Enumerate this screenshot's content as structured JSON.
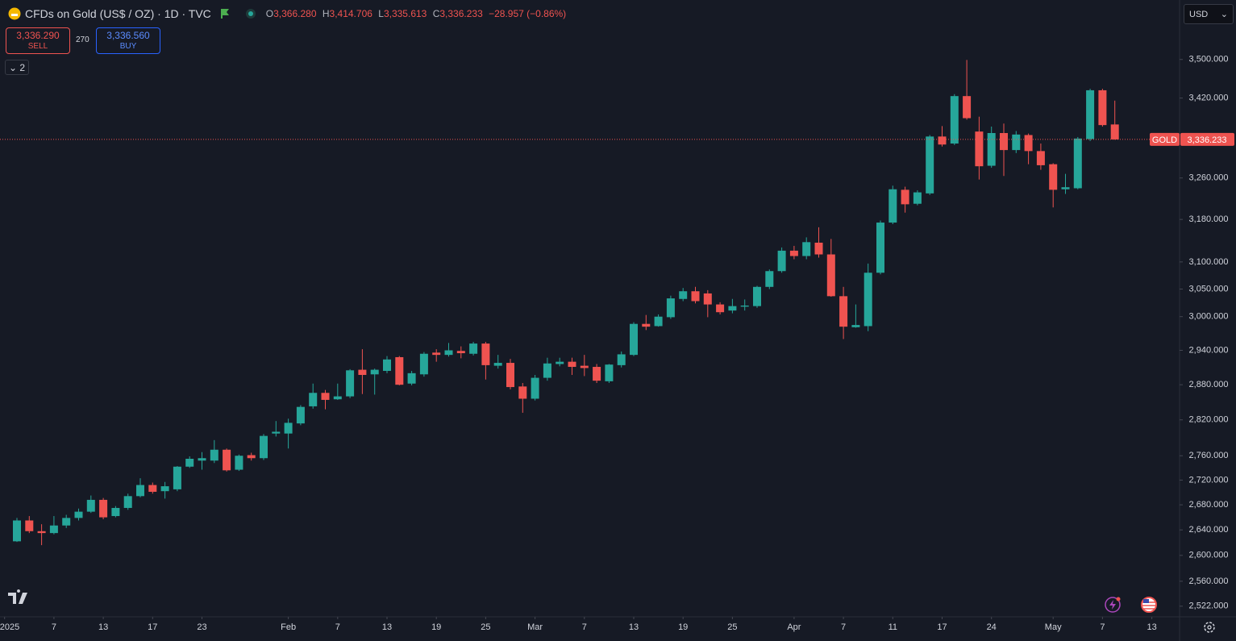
{
  "header": {
    "symbol": "CFDs on Gold (US$ / OZ) · 1D · TVC",
    "ohlc": [
      {
        "key": "O",
        "value": "3,366.280"
      },
      {
        "key": "H",
        "value": "3,414.706"
      },
      {
        "key": "L",
        "value": "3,335.613"
      },
      {
        "key": "C",
        "value": "3,336.233"
      }
    ],
    "change": "−28.957 (−0.86%)"
  },
  "trade": {
    "sell_price": "3,336.290",
    "sell": "SELL",
    "spread": "270",
    "buy_price": "3,336.560",
    "buy": "BUY"
  },
  "indicators_count": "2",
  "currency": "USD",
  "chart_data": {
    "type": "candlestick",
    "categories": [
      "2025-01-02",
      "2025-01-03",
      "2025-01-06",
      "2025-01-07",
      "2025-01-08",
      "2025-01-09",
      "2025-01-10",
      "2025-01-13",
      "2025-01-14",
      "2025-01-15",
      "2025-01-16",
      "2025-01-17",
      "2025-01-20",
      "2025-01-21",
      "2025-01-22",
      "2025-01-23",
      "2025-01-24",
      "2025-01-27",
      "2025-01-28",
      "2025-01-29",
      "2025-01-30",
      "2025-01-31",
      "2025-02-03",
      "2025-02-04",
      "2025-02-05",
      "2025-02-06",
      "2025-02-07",
      "2025-02-10",
      "2025-02-11",
      "2025-02-12",
      "2025-02-13",
      "2025-02-14",
      "2025-02-17",
      "2025-02-18",
      "2025-02-19",
      "2025-02-20",
      "2025-02-21",
      "2025-02-24",
      "2025-02-25",
      "2025-02-26",
      "2025-02-27",
      "2025-02-28",
      "2025-03-03",
      "2025-03-04",
      "2025-03-05",
      "2025-03-06",
      "2025-03-07",
      "2025-03-10",
      "2025-03-11",
      "2025-03-12",
      "2025-03-13",
      "2025-03-14",
      "2025-03-17",
      "2025-03-18",
      "2025-03-19",
      "2025-03-20",
      "2025-03-21",
      "2025-03-24",
      "2025-03-25",
      "2025-03-26",
      "2025-03-27",
      "2025-03-28",
      "2025-03-31",
      "2025-04-01",
      "2025-04-02",
      "2025-04-03",
      "2025-04-04",
      "2025-04-07",
      "2025-04-08",
      "2025-04-09",
      "2025-04-10",
      "2025-04-11",
      "2025-04-14",
      "2025-04-15",
      "2025-04-16",
      "2025-04-17",
      "2025-04-21",
      "2025-04-22",
      "2025-04-23",
      "2025-04-24",
      "2025-04-25",
      "2025-04-28",
      "2025-04-29",
      "2025-04-30",
      "2025-05-01",
      "2025-05-02",
      "2025-05-05",
      "2025-05-06",
      "2025-05-07",
      "2025-05-08"
    ],
    "open": [
      2622,
      2655,
      2638,
      2635,
      2647,
      2659,
      2669,
      2688,
      2662,
      2675,
      2694,
      2712,
      2702,
      2705,
      2742,
      2752,
      2752,
      2770,
      2737,
      2761,
      2756,
      2797,
      2797,
      2814,
      2843,
      2866,
      2855,
      2860,
      2906,
      2898,
      2904,
      2928,
      2882,
      2898,
      2936,
      2932,
      2939,
      2934,
      2952,
      2913,
      2918,
      2877,
      2856,
      2892,
      2916,
      2920,
      2913,
      2911,
      2886,
      2914,
      2932,
      2987,
      2983,
      2999,
      3032,
      3046,
      3042,
      3022,
      3011,
      3018,
      3019,
      3054,
      3083,
      3121,
      3111,
      3136,
      3114,
      3037,
      2981,
      2983,
      3080,
      3174,
      3237,
      3210,
      3230,
      3342,
      3328,
      3424,
      3352,
      3284,
      3349,
      3315,
      3345,
      3313,
      3287,
      3238,
      3240,
      3337,
      3436,
      3366.28
    ],
    "high": [
      2659,
      2662,
      2649,
      2662,
      2664,
      2674,
      2695,
      2691,
      2678,
      2698,
      2723,
      2716,
      2717,
      2743,
      2759,
      2766,
      2786,
      2772,
      2762,
      2765,
      2796,
      2818,
      2822,
      2845,
      2882,
      2871,
      2882,
      2907,
      2942,
      2908,
      2930,
      2930,
      2904,
      2937,
      2942,
      2953,
      2947,
      2955,
      2955,
      2932,
      2925,
      2883,
      2897,
      2927,
      2927,
      2927,
      2932,
      2916,
      2916,
      2938,
      2990,
      3003,
      3004,
      3038,
      3052,
      3054,
      3048,
      3026,
      3032,
      3031,
      3056,
      3086,
      3127,
      3130,
      3146,
      3165,
      3143,
      3054,
      3022,
      3097,
      3178,
      3245,
      3243,
      3236,
      3345,
      3363,
      3428,
      3499,
      3382,
      3362,
      3368,
      3353,
      3348,
      3328,
      3289,
      3268,
      3341,
      3439,
      3439,
      3414.706
    ],
    "low": [
      2621,
      2635,
      2616,
      2633,
      2643,
      2655,
      2667,
      2657,
      2660,
      2672,
      2692,
      2698,
      2690,
      2702,
      2740,
      2737,
      2748,
      2734,
      2735,
      2752,
      2753,
      2792,
      2772,
      2811,
      2839,
      2838,
      2854,
      2857,
      2864,
      2863,
      2900,
      2879,
      2879,
      2894,
      2920,
      2929,
      2926,
      2931,
      2889,
      2908,
      2872,
      2832,
      2853,
      2887,
      2912,
      2897,
      2895,
      2883,
      2883,
      2910,
      2930,
      2976,
      2982,
      2996,
      3028,
      3024,
      2999,
      3004,
      3006,
      3011,
      3016,
      3050,
      3080,
      3105,
      3105,
      3108,
      3036,
      2960,
      2980,
      2974,
      3077,
      3171,
      3193,
      3207,
      3227,
      3322,
      3325,
      3376,
      3257,
      3280,
      3264,
      3309,
      3287,
      3276,
      3203,
      3229,
      3238,
      3333,
      3362,
      3335.613
    ],
    "close": [
      2655,
      2638,
      2635,
      2647,
      2659,
      2669,
      2688,
      2660,
      2675,
      2694,
      2712,
      2701,
      2710,
      2742,
      2755,
      2756,
      2770,
      2736,
      2760,
      2756,
      2793,
      2800,
      2815,
      2842,
      2866,
      2854,
      2860,
      2905,
      2897,
      2906,
      2924,
      2880,
      2900,
      2934,
      2932,
      2940,
      2935,
      2952,
      2914,
      2918,
      2876,
      2856,
      2892,
      2917,
      2920,
      2911,
      2909,
      2887,
      2915,
      2933,
      2987,
      2982,
      3000,
      3033,
      3046,
      3028,
      3022,
      3008,
      3019,
      3020,
      3054,
      3083,
      3121,
      3111,
      3137,
      3114,
      3037,
      2982,
      2985,
      3080,
      3174,
      3238,
      3209,
      3232,
      3342,
      3326,
      3424,
      3379,
      3283,
      3349,
      3315,
      3346,
      3313,
      3285,
      3237,
      3242,
      3338,
      3436,
      3365,
      3336.233
    ],
    "up_color": "#26a69a",
    "down_color": "#ef5350",
    "log_scale": true,
    "grid": false,
    "ylim": [
      2506,
      3627
    ],
    "yticks": [
      {
        "value": 2522,
        "label": "2,522.000"
      },
      {
        "value": 2560,
        "label": "2,560.000"
      },
      {
        "value": 2600,
        "label": "2,600.000"
      },
      {
        "value": 2640,
        "label": "2,640.000"
      },
      {
        "value": 2680,
        "label": "2,680.000"
      },
      {
        "value": 2720,
        "label": "2,720.000"
      },
      {
        "value": 2760,
        "label": "2,760.000"
      },
      {
        "value": 2820,
        "label": "2,820.000"
      },
      {
        "value": 2880,
        "label": "2,880.000"
      },
      {
        "value": 2940,
        "label": "2,940.000"
      },
      {
        "value": 3000,
        "label": "3,000.000"
      },
      {
        "value": 3050,
        "label": "3,050.000"
      },
      {
        "value": 3100,
        "label": "3,100.000"
      },
      {
        "value": 3180,
        "label": "3,180.000"
      },
      {
        "value": 3260,
        "label": "3,260.000"
      },
      {
        "value": 3420,
        "label": "3,420.000"
      },
      {
        "value": 3500,
        "label": "3,500.000"
      }
    ],
    "xticks": [
      {
        "value": "2025-01-01",
        "label": "2025"
      },
      {
        "value": "2025-01-07",
        "label": "7"
      },
      {
        "value": "2025-01-13",
        "label": "13"
      },
      {
        "value": "2025-01-17",
        "label": "17"
      },
      {
        "value": "2025-01-23",
        "label": "23"
      },
      {
        "value": "2025-02-03",
        "label": "Feb"
      },
      {
        "value": "2025-02-07",
        "label": "7"
      },
      {
        "value": "2025-02-13",
        "label": "13"
      },
      {
        "value": "2025-02-19",
        "label": "19"
      },
      {
        "value": "2025-02-25",
        "label": "25"
      },
      {
        "value": "2025-03-03",
        "label": "Mar"
      },
      {
        "value": "2025-03-07",
        "label": "7"
      },
      {
        "value": "2025-03-13",
        "label": "13"
      },
      {
        "value": "2025-03-19",
        "label": "19"
      },
      {
        "value": "2025-03-25",
        "label": "25"
      },
      {
        "value": "2025-04-01",
        "label": "Apr"
      },
      {
        "value": "2025-04-07",
        "label": "7"
      },
      {
        "value": "2025-04-11",
        "label": "11"
      },
      {
        "value": "2025-04-17",
        "label": "17"
      },
      {
        "value": "2025-04-24",
        "label": "24"
      },
      {
        "value": "2025-05-01",
        "label": "May"
      },
      {
        "value": "2025-05-07",
        "label": "7"
      },
      {
        "value": "2025-05-13",
        "label": "13"
      }
    ],
    "last_price": {
      "label": "GOLD",
      "value": 3336.233,
      "value_label": "3,336.233"
    }
  }
}
